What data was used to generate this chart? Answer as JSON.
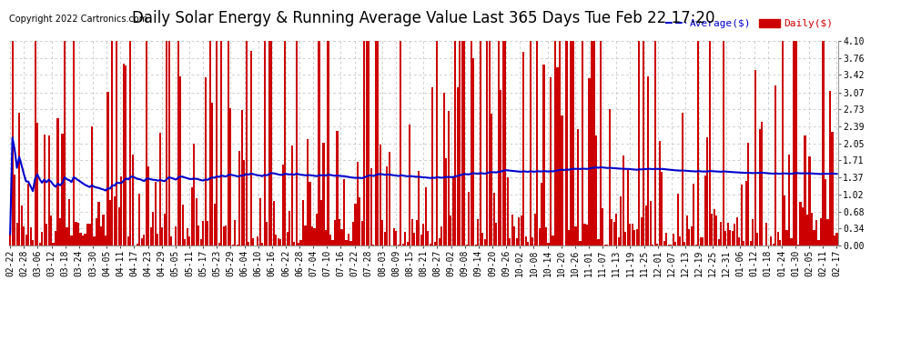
{
  "title": "Daily Solar Energy & Running Average Value Last 365 Days Tue Feb 22 17:20",
  "copyright_text": "Copyright 2022 Cartronics.com",
  "legend_avg": "Average($)",
  "legend_daily": "Daily($)",
  "ylabel_right_ticks": [
    0.0,
    0.34,
    0.68,
    1.02,
    1.37,
    1.71,
    2.05,
    2.39,
    2.73,
    3.07,
    3.42,
    3.76,
    4.1
  ],
  "ylim": [
    0,
    4.1
  ],
  "bar_color": "#cc0000",
  "avg_line_color": "#0000cc",
  "background_color": "#ffffff",
  "grid_color": "#bbbbbb",
  "title_fontsize": 12,
  "tick_label_fontsize": 7,
  "copyright_fontsize": 7,
  "num_bars": 365,
  "x_tick_labels": [
    "02-22",
    "02-28",
    "03-06",
    "03-12",
    "03-18",
    "03-24",
    "03-30",
    "04-05",
    "04-11",
    "04-17",
    "04-23",
    "04-29",
    "05-05",
    "05-11",
    "05-17",
    "05-23",
    "05-29",
    "06-04",
    "06-10",
    "06-16",
    "06-22",
    "06-28",
    "07-04",
    "07-10",
    "07-16",
    "07-22",
    "07-28",
    "08-03",
    "08-09",
    "08-15",
    "08-21",
    "08-27",
    "09-02",
    "09-08",
    "09-14",
    "09-20",
    "09-26",
    "10-02",
    "10-08",
    "10-14",
    "10-20",
    "10-26",
    "11-01",
    "11-07",
    "11-13",
    "11-19",
    "11-25",
    "12-01",
    "12-07",
    "12-13",
    "12-19",
    "12-25",
    "12-31",
    "01-06",
    "01-12",
    "01-18",
    "01-24",
    "01-30",
    "02-05",
    "02-11",
    "02-17"
  ]
}
